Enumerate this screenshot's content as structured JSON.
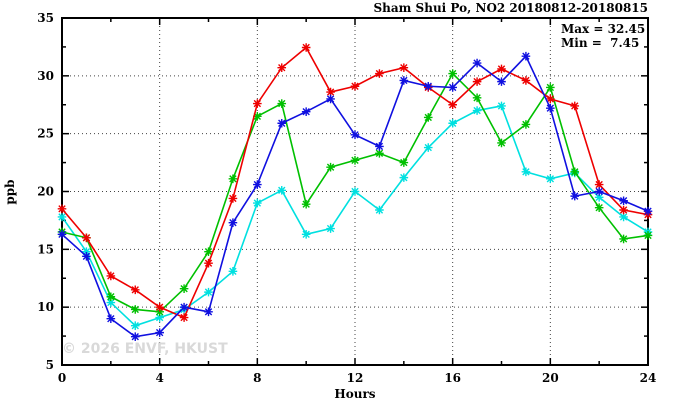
{
  "title": "Sham Shui Po, NO2 20180812-20180815",
  "watermark": "© 2026 ENVF, HKUST",
  "stats": {
    "max_label": "Max = 32.45",
    "min_label": "Min =  7.45"
  },
  "chart_data": {
    "type": "line",
    "title": "Sham Shui Po, NO2 20180812-20180815",
    "xlabel": "Hours",
    "ylabel": "ppb",
    "xlim": [
      0,
      24
    ],
    "ylim": [
      5,
      35
    ],
    "x_major_ticks": [
      0,
      4,
      8,
      12,
      16,
      20,
      24
    ],
    "x_minor_ticks": [
      2,
      6,
      10,
      14,
      18,
      22
    ],
    "y_major_ticks": [
      5,
      10,
      15,
      20,
      25,
      30,
      35
    ],
    "y_minor_ticks": [
      7.5,
      12.5,
      17.5,
      22.5,
      27.5,
      32.5
    ],
    "grid": true,
    "annotations": [
      "Max = 32.45",
      "Min =  7.45"
    ],
    "x": [
      0,
      1,
      2,
      3,
      4,
      5,
      6,
      7,
      8,
      9,
      10,
      11,
      12,
      13,
      14,
      15,
      16,
      17,
      18,
      19,
      20,
      21,
      22,
      23,
      24
    ],
    "series": [
      {
        "name": "cyan-series",
        "color": "#00e0e0",
        "values": [
          17.8,
          14.8,
          10.4,
          8.4,
          9.1,
          9.8,
          11.3,
          13.1,
          19.0,
          20.1,
          16.3,
          16.8,
          20.0,
          18.4,
          21.2,
          23.8,
          25.9,
          27.0,
          27.4,
          21.7,
          21.1,
          21.6,
          19.5,
          17.8,
          16.5
        ]
      },
      {
        "name": "green-series",
        "color": "#00c000",
        "values": [
          16.5,
          16.0,
          10.9,
          9.8,
          9.6,
          11.6,
          14.8,
          21.1,
          26.5,
          27.6,
          18.9,
          22.1,
          22.7,
          23.3,
          22.5,
          26.4,
          30.2,
          28.1,
          24.2,
          25.8,
          29.0,
          21.7,
          18.6,
          15.9,
          16.2
        ]
      },
      {
        "name": "red-series",
        "color": "#ee0000",
        "values": [
          18.5,
          16.0,
          12.7,
          11.5,
          10.0,
          9.1,
          13.8,
          19.4,
          27.6,
          30.7,
          32.45,
          28.6,
          29.1,
          30.2,
          30.7,
          29.0,
          27.5,
          29.5,
          30.6,
          29.6,
          28.0,
          27.4,
          20.6,
          18.4,
          18.0
        ]
      },
      {
        "name": "blue-series",
        "color": "#1010e0",
        "values": [
          16.3,
          14.4,
          9.0,
          7.45,
          7.8,
          10.0,
          9.6,
          17.3,
          20.6,
          25.9,
          26.9,
          28.0,
          24.9,
          23.9,
          29.6,
          29.1,
          29.0,
          31.1,
          29.5,
          31.7,
          27.2,
          19.6,
          20.0,
          19.2,
          18.3
        ]
      }
    ]
  }
}
